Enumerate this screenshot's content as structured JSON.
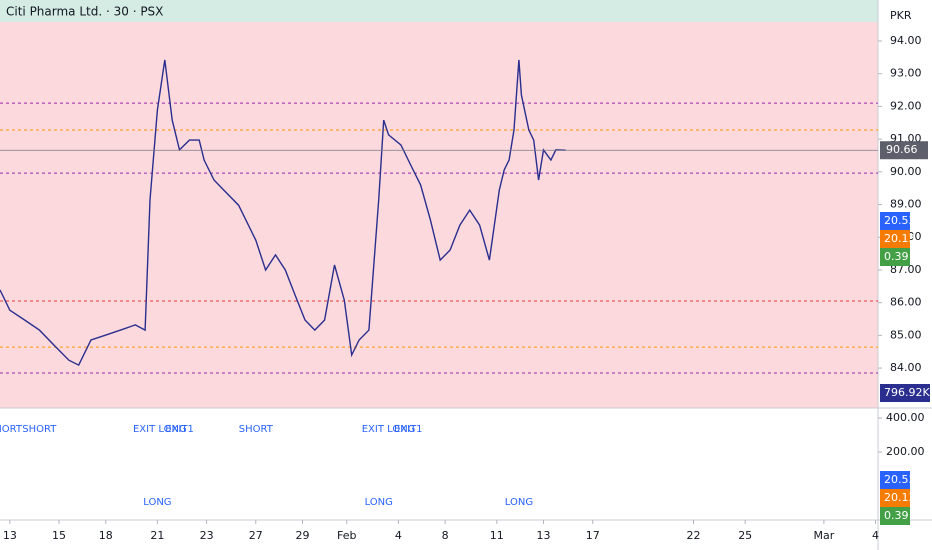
{
  "chart_data": {
    "type": "line",
    "title": "Citi Pharma Ltd. · 30 · PSX",
    "currency": "PKR",
    "color": "#2a2e8f",
    "xlim": [
      -0.4,
      35.3
    ],
    "xticks": [
      {
        "value": 0,
        "label": "13"
      },
      {
        "value": 2,
        "label": "15"
      },
      {
        "value": 3.9,
        "label": "18"
      },
      {
        "value": 6,
        "label": "21"
      },
      {
        "value": 8,
        "label": "23"
      },
      {
        "value": 10,
        "label": "27"
      },
      {
        "value": 11.9,
        "label": "29"
      },
      {
        "value": 13.7,
        "label": "Feb"
      },
      {
        "value": 15.8,
        "label": "4"
      },
      {
        "value": 17.7,
        "label": "8"
      },
      {
        "value": 19.8,
        "label": "11"
      },
      {
        "value": 21.7,
        "label": "13"
      },
      {
        "value": 23.7,
        "label": "17"
      },
      {
        "value": 27.8,
        "label": "22"
      },
      {
        "value": 29.9,
        "label": "25"
      },
      {
        "value": 33.1,
        "label": "Mar"
      },
      {
        "value": 35.2,
        "label": "4"
      }
    ],
    "ylim": [
      82.78,
      94.58
    ],
    "yticks": [
      {
        "value": 84,
        "label": "84.00"
      },
      {
        "value": 85,
        "label": "85.00"
      },
      {
        "value": 86,
        "label": "86.00"
      },
      {
        "value": 87,
        "label": "87.00"
      },
      {
        "value": 88,
        "label": "88.00"
      },
      {
        "value": 89,
        "label": "89.00"
      },
      {
        "value": 90,
        "label": "90.00"
      },
      {
        "value": 91,
        "label": "91.00"
      },
      {
        "value": 92,
        "label": "92.00"
      },
      {
        "value": 93,
        "label": "93.00"
      },
      {
        "value": 94,
        "label": "94.00"
      }
    ],
    "x": [
      -0.4,
      0,
      0.6,
      1.2,
      1.8,
      2.4,
      2.8,
      3.3,
      3.9,
      4.5,
      5.1,
      5.5,
      5.7,
      6.0,
      6.3,
      6.6,
      6.9,
      7.3,
      7.7,
      7.9,
      8.3,
      8.7,
      9.3,
      10.0,
      10.4,
      10.8,
      11.2,
      11.6,
      12.0,
      12.4,
      12.8,
      13.2,
      13.6,
      13.9,
      14.2,
      14.6,
      15.0,
      15.2,
      15.4,
      15.9,
      16.3,
      16.7,
      17.1,
      17.5,
      17.9,
      18.3,
      18.7,
      19.1,
      19.5,
      19.9,
      20.1,
      20.3,
      20.5,
      20.7,
      20.8,
      21.1,
      21.3,
      21.5,
      21.7,
      22.0,
      22.2,
      22.6
    ],
    "values": [
      86.39,
      85.77,
      85.47,
      85.16,
      84.7,
      84.24,
      84.09,
      84.86,
      85.01,
      85.16,
      85.32,
      85.16,
      89.14,
      91.89,
      93.42,
      91.58,
      90.67,
      90.97,
      90.97,
      90.36,
      89.75,
      89.44,
      88.98,
      87.91,
      87.0,
      87.46,
      87.0,
      86.23,
      85.47,
      85.16,
      85.47,
      87.15,
      86.08,
      84.4,
      84.86,
      85.16,
      89.14,
      91.58,
      91.13,
      90.82,
      90.21,
      89.6,
      88.53,
      87.3,
      87.61,
      88.37,
      88.83,
      88.37,
      87.3,
      89.44,
      90.06,
      90.36,
      91.28,
      93.42,
      92.35,
      91.28,
      90.97,
      89.75,
      90.67,
      90.36,
      90.67,
      90.66
    ],
    "last_price": 90.66,
    "levels": [
      {
        "value": 92.1,
        "color": "#9c27b0"
      },
      {
        "value": 91.28,
        "color": "#ff9800"
      },
      {
        "value": 89.96,
        "color": "#9c27b0"
      },
      {
        "value": 86.05,
        "color": "#e53935"
      },
      {
        "value": 84.64,
        "color": "#ff9800"
      },
      {
        "value": 83.85,
        "color": "#9c27b0"
      }
    ],
    "indicator_badges": [
      {
        "value": 20.53,
        "color": "#2962ff"
      },
      {
        "value": 20.13,
        "color": "#f57c00"
      },
      {
        "value": 0.39,
        "color": "#43a047"
      }
    ],
    "volume_label": "796.92K",
    "lower_panel": {
      "ylim": [
        -200,
        458.8
      ],
      "yticks": [
        {
          "value": 400,
          "label": "400.00"
        },
        {
          "value": 200,
          "label": "200.00"
        }
      ],
      "signals": [
        {
          "text": "SHORT",
          "x": -0.2,
          "row": "top"
        },
        {
          "text": "SHORT",
          "x": 1.2,
          "row": "top"
        },
        {
          "text": "EXIT LONG",
          "x": 6.1,
          "row": "top"
        },
        {
          "text": "EXIT1",
          "x": 6.9,
          "row": "top"
        },
        {
          "text": "SHORT",
          "x": 10.0,
          "row": "top"
        },
        {
          "text": "EXIT LONG",
          "x": 15.4,
          "row": "top"
        },
        {
          "text": "EXIT1",
          "x": 16.2,
          "row": "top"
        },
        {
          "text": "LONG",
          "x": 6.0,
          "row": "bottom"
        },
        {
          "text": "LONG",
          "x": 15.0,
          "row": "bottom"
        },
        {
          "text": "LONG",
          "x": 20.7,
          "row": "bottom"
        }
      ]
    }
  }
}
